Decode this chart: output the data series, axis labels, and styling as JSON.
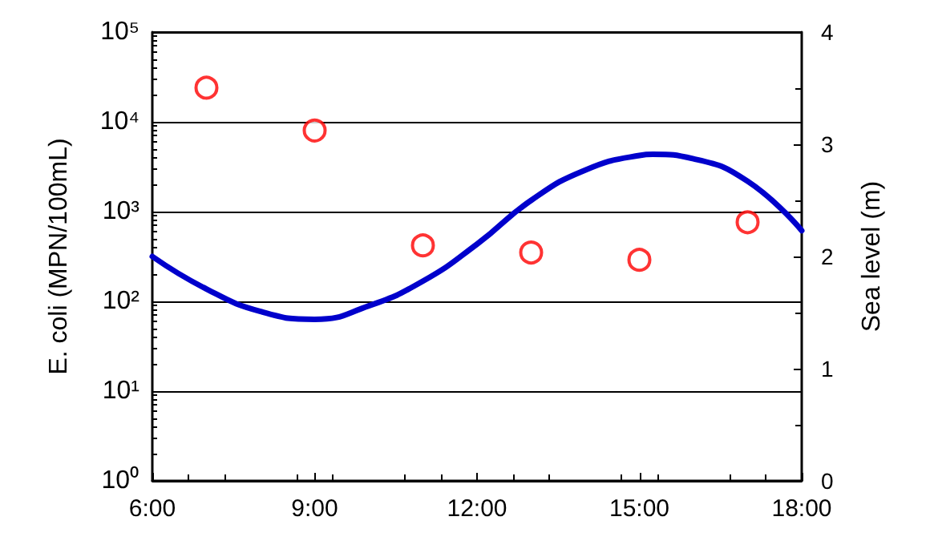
{
  "chart_data": {
    "type": "scatter",
    "xlabel": null,
    "ylabel": "E. coli (MPN/100mL)",
    "y2label": "Sea level (m)",
    "log": "y",
    "grid": "y",
    "xlim": [
      6,
      18
    ],
    "xticks": [
      {
        "value": 6,
        "label": "6:00"
      },
      {
        "value": 9,
        "label": "9:00"
      },
      {
        "value": 12,
        "label": "12:00"
      },
      {
        "value": 15,
        "label": "15:00"
      },
      {
        "value": 18,
        "label": "18:00"
      }
    ],
    "ylim": [
      1,
      100000
    ],
    "yticks": [
      {
        "value": 1,
        "label": "10⁰"
      },
      {
        "value": 10,
        "label": "10¹"
      },
      {
        "value": 100,
        "label": "10²"
      },
      {
        "value": 1000,
        "label": "10³"
      },
      {
        "value": 10000,
        "label": "10⁴"
      },
      {
        "value": 100000,
        "label": "10⁵"
      }
    ],
    "y2lim": [
      0,
      4
    ],
    "y2ticks": [
      0,
      1,
      2,
      3,
      4
    ],
    "series": [
      {
        "marker": "circle",
        "color": "#ff0000",
        "x": [
          7,
          9,
          11,
          13,
          15,
          17
        ],
        "values": [
          24000,
          8000,
          420,
          350,
          290,
          760
        ]
      },
      {
        "type": "line",
        "axis": "y2",
        "marker": "none",
        "line_style": "solid",
        "color": "#0000cc",
        "x": [
          6,
          7,
          8,
          9,
          10,
          11,
          12,
          13,
          14,
          15,
          15.25,
          16,
          17,
          18
        ],
        "values": [
          2.0,
          1.71,
          1.51,
          1.44,
          1.56,
          1.78,
          2.11,
          2.5,
          2.77,
          2.9,
          2.91,
          2.87,
          2.67,
          2.23
        ]
      }
    ]
  }
}
